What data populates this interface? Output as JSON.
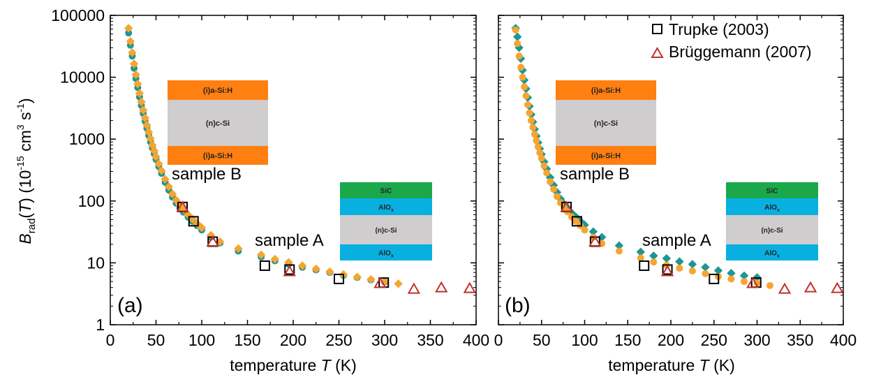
{
  "chart_data": [
    {
      "type": "scatter",
      "panel_label": "(a)",
      "xlabel": "temperature T (K)",
      "xlabel_prefix": "temperature ",
      "xlabel_var": "T",
      "xlabel_unit": " (K)",
      "ylabel_parts": {
        "B": "B",
        "sub": "rad",
        "T": "T",
        "unit": "(10",
        "exp1": "-15",
        "cm": " cm",
        "exp2": "3",
        "s": " s",
        "exp3": "-1",
        "close": ")"
      },
      "xlim": [
        0,
        400
      ],
      "ylim": [
        1,
        100000
      ],
      "yscale": "log",
      "x_ticks": [
        0,
        50,
        100,
        150,
        200,
        250,
        300,
        350,
        400
      ],
      "x_tick_labels": [
        "0",
        "50",
        "100",
        "150",
        "200",
        "250",
        "300",
        "350",
        "400"
      ],
      "y_ticks": [
        1,
        10,
        100,
        1000,
        10000,
        100000
      ],
      "y_tick_labels": [
        "1",
        "10",
        "100",
        "1000",
        "10000",
        "100000"
      ],
      "legend": [],
      "series": [
        {
          "marker": "circle",
          "color": "#1f9694",
          "x": [
            20,
            22,
            24,
            26,
            28,
            30,
            32,
            34,
            36,
            38,
            40,
            42,
            44,
            46,
            48,
            50,
            53,
            56,
            60,
            64,
            68,
            72,
            76,
            80,
            85,
            90,
            95,
            100,
            110,
            120,
            140,
            165,
            180,
            195,
            210,
            225,
            240,
            255,
            270,
            285,
            300
          ],
          "y": [
            52000,
            33000,
            22000,
            14000,
            9500,
            6800,
            4800,
            3500,
            2600,
            1950,
            1500,
            1150,
            900,
            720,
            580,
            470,
            360,
            280,
            200,
            150,
            115,
            92,
            77,
            66,
            55,
            47,
            40,
            34,
            26,
            21,
            15.5,
            12.5,
            10.8,
            9.5,
            8.5,
            7.7,
            7.0,
            6.3,
            5.8,
            5.3,
            4.9
          ]
        },
        {
          "marker": "diamond",
          "color": "#f6a532",
          "x": [
            20,
            22,
            24,
            26,
            28,
            30,
            32,
            34,
            36,
            38,
            40,
            42,
            44,
            46,
            48,
            50,
            53,
            56,
            60,
            64,
            68,
            72,
            76,
            80,
            85,
            90,
            95,
            100,
            110,
            120,
            140,
            165,
            180,
            195,
            210,
            225,
            240,
            255,
            270,
            285,
            300,
            315
          ],
          "y": [
            62000,
            38000,
            25000,
            16500,
            11000,
            7800,
            5500,
            4000,
            2950,
            2200,
            1680,
            1300,
            1020,
            800,
            650,
            520,
            400,
            310,
            225,
            170,
            130,
            103,
            86,
            73,
            60,
            51,
            43,
            37,
            28,
            22,
            17,
            13.5,
            11.5,
            10.2,
            9.0,
            8.0,
            7.2,
            6.5,
            5.9,
            5.4,
            5.0,
            4.6
          ]
        },
        {
          "marker": "square",
          "color": "#000000",
          "name": "Trupke (2003)",
          "x": [
            79,
            91,
            112,
            169,
            196,
            250,
            299
          ],
          "y": [
            80,
            47,
            22,
            9,
            7.8,
            5.5,
            4.8
          ]
        },
        {
          "marker": "triangle",
          "color": "#c0302b",
          "name": "Brüggemann (2007)",
          "x": [
            79,
            112,
            196,
            295,
            332,
            362,
            393
          ],
          "y": [
            80,
            22,
            7.3,
            4.7,
            3.8,
            4.0,
            3.9
          ]
        }
      ],
      "annotations": {
        "sample_b": "sample B",
        "sample_a": "sample A",
        "stack_b": [
          "(i)a-Si:H",
          "(n)c-Si",
          "(i)a-Si:H"
        ],
        "stack_a": [
          "SiC",
          "AlO",
          "(n)c-Si",
          "AlO"
        ],
        "alo_sub": "x"
      }
    },
    {
      "type": "scatter",
      "panel_label": "(b)",
      "xlabel": "temperature T (K)",
      "xlabel_prefix": "temperature ",
      "xlabel_var": "T",
      "xlabel_unit": " (K)",
      "xlim": [
        0,
        400
      ],
      "ylim": [
        1,
        100000
      ],
      "yscale": "log",
      "x_ticks": [
        0,
        50,
        100,
        150,
        200,
        250,
        300,
        350,
        400
      ],
      "x_tick_labels": [
        "0",
        "50",
        "100",
        "150",
        "200",
        "250",
        "300",
        "350",
        "400"
      ],
      "legend": [
        "Trupke (2003)",
        "Brüggemann (2007)"
      ],
      "legend_position": "top-right",
      "series": [
        {
          "marker": "diamond",
          "color": "#1f9694",
          "x": [
            20,
            22,
            24,
            26,
            28,
            30,
            32,
            34,
            36,
            38,
            40,
            42,
            44,
            46,
            48,
            50,
            53,
            56,
            60,
            64,
            68,
            72,
            76,
            80,
            85,
            90,
            95,
            100,
            110,
            120,
            140,
            165,
            180,
            195,
            210,
            225,
            240,
            255,
            270,
            285,
            300
          ],
          "y": [
            62000,
            45000,
            30000,
            20000,
            13000,
            9000,
            6500,
            4700,
            3400,
            2500,
            1900,
            1450,
            1120,
            880,
            700,
            570,
            430,
            330,
            240,
            180,
            138,
            108,
            90,
            77,
            64,
            55,
            47,
            41,
            32,
            26,
            19,
            15,
            13,
            11.8,
            10.5,
            9.5,
            8.5,
            7.5,
            6.8,
            6.2,
            5.8
          ]
        },
        {
          "marker": "circle",
          "color": "#f6a532",
          "x": [
            20,
            22,
            24,
            26,
            28,
            30,
            32,
            34,
            36,
            38,
            40,
            42,
            44,
            46,
            48,
            50,
            53,
            56,
            60,
            64,
            68,
            72,
            76,
            80,
            85,
            90,
            95,
            100,
            110,
            120,
            140,
            165,
            180,
            195,
            210,
            225,
            240,
            255,
            270,
            285,
            300,
            315
          ],
          "y": [
            58000,
            35000,
            22000,
            14500,
            10000,
            7000,
            5000,
            3600,
            2650,
            2000,
            1550,
            1200,
            950,
            750,
            600,
            490,
            370,
            285,
            205,
            155,
            118,
            94,
            78,
            67,
            55,
            47,
            40,
            34,
            26,
            20.5,
            15.5,
            12,
            10.3,
            9.2,
            8.2,
            7.4,
            6.7,
            6.0,
            5.5,
            5.0,
            4.7,
            4.3
          ]
        },
        {
          "marker": "square",
          "color": "#000000",
          "name": "Trupke (2003)",
          "x": [
            79,
            91,
            112,
            169,
            196,
            250,
            299
          ],
          "y": [
            80,
            47,
            22,
            9,
            7.8,
            5.5,
            4.8
          ]
        },
        {
          "marker": "triangle",
          "color": "#c0302b",
          "name": "Brüggemann (2007)",
          "x": [
            79,
            112,
            196,
            295,
            332,
            362,
            393
          ],
          "y": [
            80,
            22,
            7.3,
            4.7,
            3.8,
            4.0,
            3.9
          ]
        }
      ],
      "annotations": {
        "sample_b": "sample B",
        "sample_a": "sample A",
        "stack_b": [
          "(i)a-Si:H",
          "(n)c-Si",
          "(i)a-Si:H"
        ],
        "stack_a": [
          "SiC",
          "AlO",
          "(n)c-Si",
          "AlO"
        ],
        "alo_sub": "x"
      }
    }
  ],
  "colors": {
    "asi": "#ff7f11",
    "csi": "#cfcdce",
    "sic": "#1aa84b",
    "alox": "#08b0e0"
  }
}
